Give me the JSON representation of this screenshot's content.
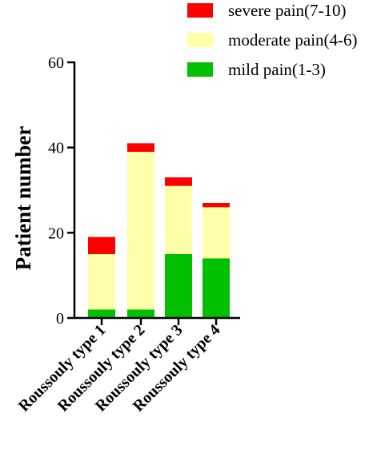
{
  "chart_data": {
    "type": "bar",
    "stacked": true,
    "categories": [
      "Roussouly type 1",
      "Roussouly type 2",
      "Roussouly type 3",
      "Roussouly type 4"
    ],
    "series": [
      {
        "name": "mild pain(1-3)",
        "color": "#00c000",
        "values": [
          2,
          2,
          15,
          14
        ]
      },
      {
        "name": "moderate pain(4-6)",
        "color": "#ffffaa",
        "values": [
          13,
          37,
          16,
          12
        ]
      },
      {
        "name": "severe pain(7-10)",
        "color": "#ff0000",
        "values": [
          4,
          2,
          2,
          1
        ]
      }
    ],
    "legend_order": [
      "severe pain(7-10)",
      "moderate pain(4-6)",
      "mild pain(1-3)"
    ],
    "ylabel": "Patient number",
    "xlabel": "",
    "ylim": [
      0,
      60
    ],
    "yticks": [
      0,
      20,
      40,
      60
    ],
    "legend_position": "top-right",
    "grid": false
  }
}
